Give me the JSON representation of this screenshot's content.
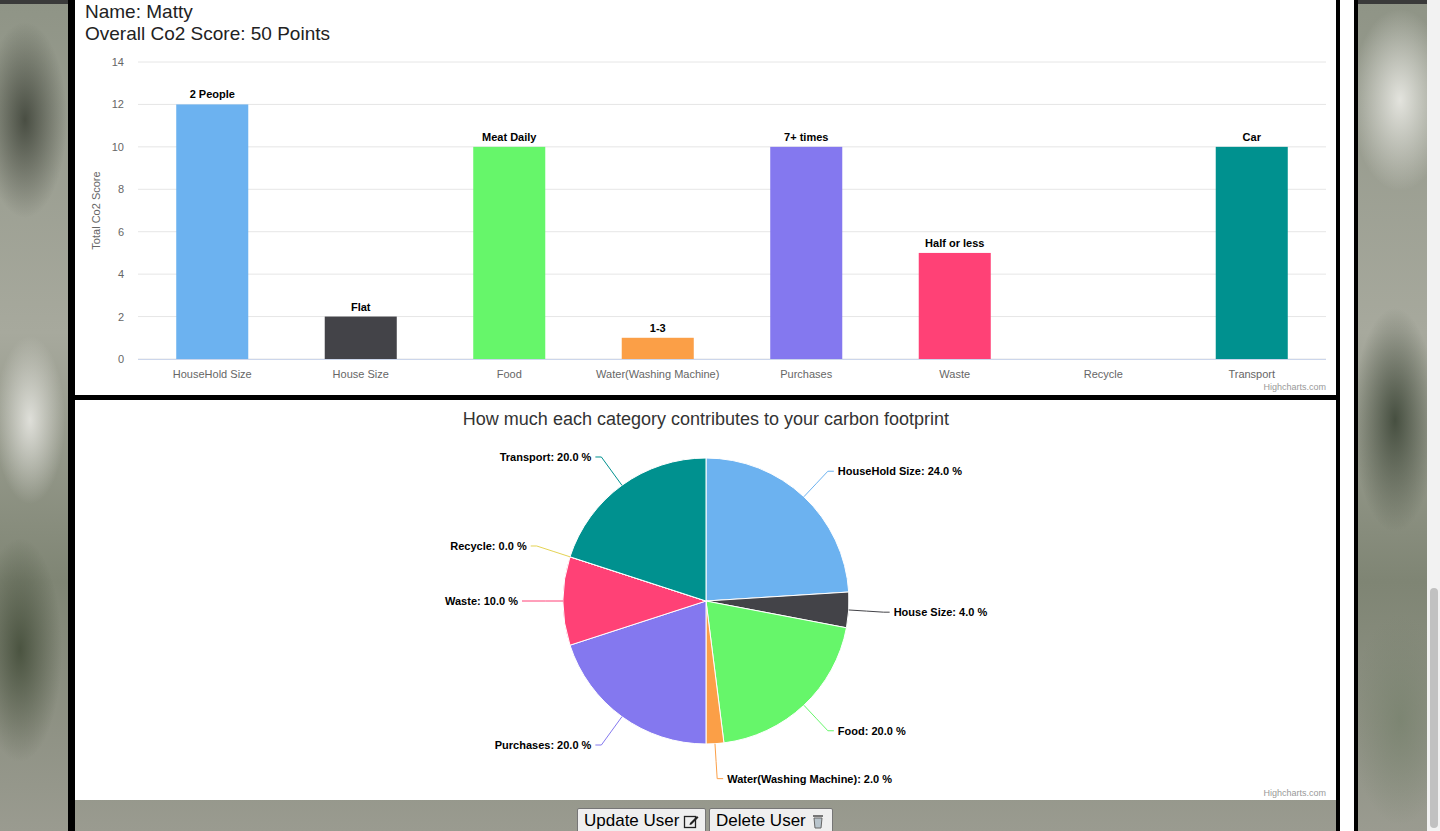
{
  "header": {
    "name": "Name: Matty",
    "score": "Overall Co2 Score: 50 Points"
  },
  "chart_data": [
    {
      "type": "bar",
      "y_label": "Total Co2 Score",
      "categories": [
        "HouseHold Size",
        "House Size",
        "Food",
        "Water(Washing Machine)",
        "Purchases",
        "Waste",
        "Recycle",
        "Transport"
      ],
      "values": [
        12,
        2,
        10,
        1,
        10,
        5,
        0,
        10
      ],
      "annotations": [
        "2 People",
        "Flat",
        "Meat Daily",
        "1-3",
        "7+ times",
        "Half or less",
        null,
        "Car"
      ],
      "colors": [
        "#6cb2f0",
        "#434348",
        "#66f66a",
        "#fb9f47",
        "#8478ef",
        "#ff4176",
        "#e4d354",
        "#00918f"
      ],
      "ylim": [
        0,
        14
      ],
      "yticks": [
        0,
        2,
        4,
        6,
        8,
        10,
        12,
        14
      ],
      "grid": true,
      "credits": "Highcharts.com"
    },
    {
      "type": "pie",
      "title": "How much each category contributes to your carbon footprint",
      "categories": [
        "HouseHold Size",
        "House Size",
        "Food",
        "Water(Washing Machine)",
        "Purchases",
        "Waste",
        "Recycle",
        "Transport"
      ],
      "values": [
        24,
        4,
        20,
        2,
        20,
        10,
        0,
        20
      ],
      "value_labels": [
        "HouseHold Size: 24.0 %",
        "House Size: 4.0 %",
        "Food: 20.0 %",
        "Water(Washing Machine): 2.0 %",
        "Purchases: 20.0 %",
        "Waste: 10.0 %",
        "Recycle: 0.0 %",
        "Transport: 20.0 %"
      ],
      "colors": [
        "#6cb2f0",
        "#434348",
        "#66f66a",
        "#fb9f47",
        "#8478ef",
        "#ff4176",
        "#e4d354",
        "#00918f"
      ],
      "credits": "Highcharts.com"
    }
  ],
  "buttons": [
    "Update User",
    "Delete User"
  ]
}
